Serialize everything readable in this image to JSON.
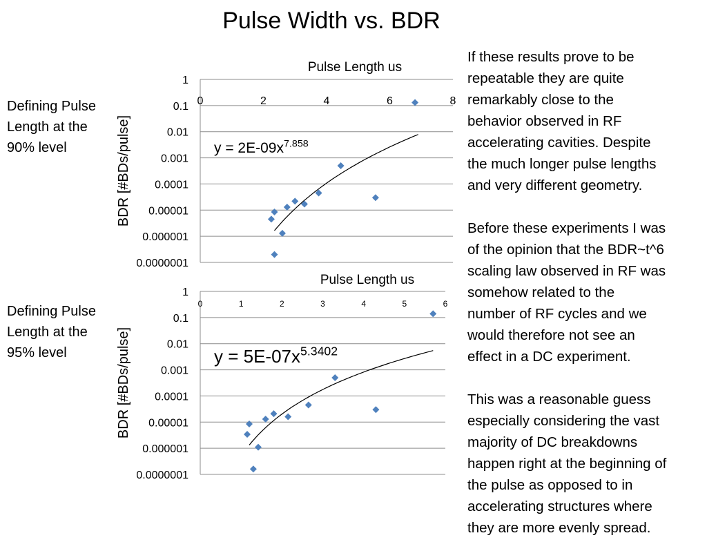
{
  "slide": {
    "title": "Pulse Width vs. BDR"
  },
  "left_labels": [
    {
      "lines": [
        "Defining Pulse",
        "Length at the",
        "90% level"
      ]
    },
    {
      "lines": [
        "Defining Pulse",
        "Length at the",
        "95% level"
      ]
    }
  ],
  "notes": {
    "paragraphs": [
      [
        "If these results prove to be",
        "repeatable they are quite",
        "remarkably close to the",
        "behavior observed in RF",
        "accelerating cavities.  Despite",
        "the much longer pulse lengths",
        "and very different geometry."
      ],
      [
        "Before these experiments I was",
        "of the opinion that the BDR~t^6",
        "scaling law observed in RF was",
        "somehow related to the",
        "number of RF cycles and we",
        "would therefore not see an",
        "effect in a DC experiment."
      ],
      [
        "This was a reasonable guess",
        "especially considering the vast",
        "majority of DC breakdowns",
        "happen right at the beginning of",
        "the pulse as opposed to in",
        "accelerating structures where",
        "they are more evenly spread."
      ]
    ]
  },
  "chart_data": [
    {
      "type": "scatter",
      "title": "",
      "xlabel": "Pulse Length us",
      "ylabel": "BDR [#BDs/pulse]",
      "xlim": [
        0,
        8
      ],
      "x_ticks": [
        "0",
        "2",
        "4",
        "6",
        "8"
      ],
      "y_scale": "log",
      "ylim": [
        1e-07,
        1
      ],
      "y_ticks": [
        "1",
        "0.1",
        "0.01",
        "0.001",
        "0.0001",
        "0.00001",
        "0.000001",
        "0.0000001"
      ],
      "grid": "horizontal",
      "marker_color": "#4F81BD",
      "series": [
        {
          "points": [
            [
              2.35,
              2e-07
            ],
            [
              2.25,
              4.5e-06
            ],
            [
              2.6,
              1.3e-06
            ],
            [
              2.35,
              8.5e-06
            ],
            [
              2.75,
              1.3e-05
            ],
            [
              3.0,
              2.2e-05
            ],
            [
              3.3,
              1.7e-05
            ],
            [
              3.75,
              4.5e-05
            ],
            [
              4.45,
              0.0005
            ],
            [
              5.55,
              3e-05
            ],
            [
              6.8,
              0.13
            ]
          ]
        }
      ],
      "trendline": {
        "type": "power",
        "label": "y = 2E-09x",
        "exponent_label": "7.858",
        "coef": 2e-09,
        "exp": 7.858,
        "x_range": [
          2.35,
          6.9
        ]
      }
    },
    {
      "type": "scatter",
      "title": "",
      "xlabel": "Pulse Length us",
      "ylabel": "BDR [#BDs/pulse]",
      "xlim": [
        0,
        6
      ],
      "x_ticks": [
        "0",
        "1",
        "2",
        "3",
        "4",
        "5",
        "6"
      ],
      "y_scale": "log",
      "ylim": [
        1e-07,
        1
      ],
      "y_ticks": [
        "1",
        "0.1",
        "0.01",
        "0.001",
        "0.0001",
        "0.00001",
        "0.000001",
        "0.0000001"
      ],
      "grid": "horizontal",
      "marker_color": "#4F81BD",
      "series": [
        {
          "points": [
            [
              1.3,
              1.6e-07
            ],
            [
              1.15,
              3.4e-06
            ],
            [
              1.42,
              1.1e-06
            ],
            [
              1.2,
              8.5e-06
            ],
            [
              1.6,
              1.3e-05
            ],
            [
              1.8,
              2.1e-05
            ],
            [
              2.15,
              1.6e-05
            ],
            [
              2.65,
              4.5e-05
            ],
            [
              3.3,
              0.0005
            ],
            [
              4.3,
              3e-05
            ],
            [
              5.7,
              0.14
            ]
          ]
        }
      ],
      "trendline": {
        "type": "power",
        "label": "y = 5E-07x",
        "exponent_label": "5.3402",
        "coef": 5e-07,
        "exp": 5.3402,
        "x_range": [
          1.2,
          5.7
        ]
      }
    }
  ]
}
